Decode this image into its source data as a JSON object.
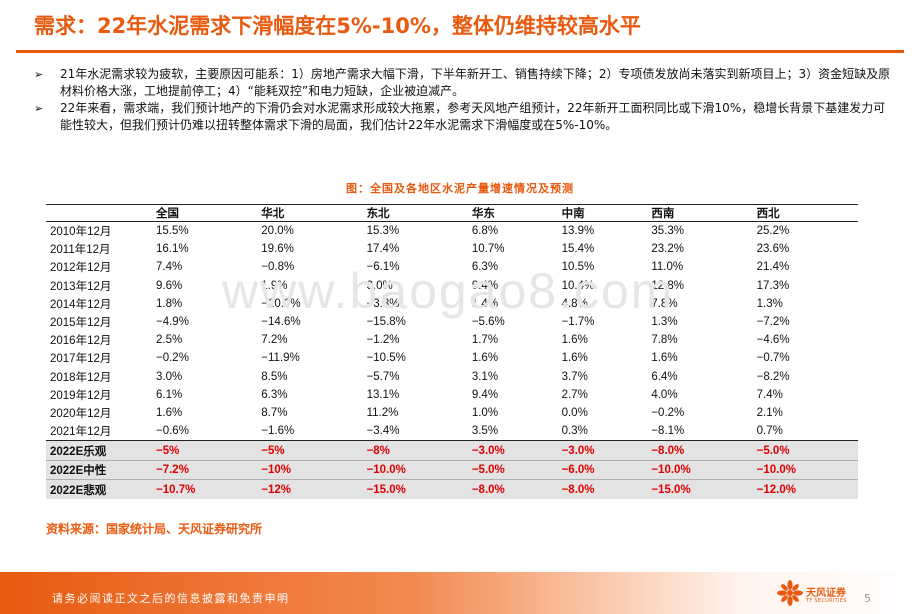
{
  "title": "需求：22年水泥需求下滑幅度在5%-10%，整体仍维持较高水平",
  "bullets": [
    {
      "mark": "➢",
      "text": "21年水泥需求较为疲软，主要原因可能系：1）房地产需求大幅下滑，下半年新开工、销售持续下降；2）专项债发放尚未落实到新项目上；3）资金短缺及原材料价格大涨，工地提前停工；4）“能耗双控”和电力短缺，企业被迫减产。"
    },
    {
      "mark": "➢",
      "text": "22年来看，需求端，我们预计地产的下滑仍会对水泥需求形成较大拖累，参考天风地产组预计，22年新开工面积同比或下滑10%，稳增长背景下基建发力可能性较大，但我们预计仍难以扭转整体需求下滑的局面，我们估计22年水泥需求下滑幅度或在5%-10%。"
    }
  ],
  "watermark": "www.baogao8.com",
  "caption": "图：全国及各地区水泥产量增速情况及预测",
  "table": {
    "headers": [
      "",
      "全国",
      "华北",
      "东北",
      "华东",
      "中南",
      "西南",
      "西北"
    ],
    "rows": [
      [
        "2010年12月",
        "15.5%",
        "20.0%",
        "15.3%",
        "6.8%",
        "13.9%",
        "35.3%",
        "25.2%"
      ],
      [
        "2011年12月",
        "16.1%",
        "19.6%",
        "17.4%",
        "10.7%",
        "15.4%",
        "23.2%",
        "23.6%"
      ],
      [
        "2012年12月",
        "7.4%",
        "−0.8%",
        "−6.1%",
        "6.3%",
        "10.5%",
        "11.0%",
        "21.4%"
      ],
      [
        "2013年12月",
        "9.6%",
        "1.9%",
        "3.0%",
        "9.4%",
        "10.4%",
        "12.8%",
        "17.3%"
      ],
      [
        "2014年12月",
        "1.8%",
        "−10.0%",
        "−3.8%",
        "1.4%",
        "4.8%",
        "7.8%",
        "1.3%"
      ],
      [
        "2015年12月",
        "−4.9%",
        "−14.6%",
        "−15.8%",
        "−5.6%",
        "−1.7%",
        "1.3%",
        "−7.2%"
      ],
      [
        "2016年12月",
        "2.5%",
        "7.2%",
        "−1.2%",
        "1.7%",
        "1.6%",
        "7.8%",
        "−4.6%"
      ],
      [
        "2017年12月",
        "−0.2%",
        "−11.9%",
        "−10.5%",
        "1.6%",
        "1.6%",
        "1.6%",
        "−0.7%"
      ],
      [
        "2018年12月",
        "3.0%",
        "8.5%",
        "−5.7%",
        "3.1%",
        "3.7%",
        "6.4%",
        "−8.2%"
      ],
      [
        "2019年12月",
        "6.1%",
        "6.3%",
        "13.1%",
        "9.4%",
        "2.7%",
        "4.0%",
        "7.4%"
      ],
      [
        "2020年12月",
        "1.6%",
        "8.7%",
        "11.2%",
        "1.0%",
        "0.0%",
        "−0.2%",
        "2.1%"
      ],
      [
        "2021年12月",
        "−0.6%",
        "−1.6%",
        "−3.4%",
        "3.5%",
        "0.3%",
        "−8.1%",
        "0.7%"
      ]
    ],
    "forecast_rows": [
      [
        "2022E乐观",
        "−5%",
        "−5%",
        "−8%",
        "−3.0%",
        "−3.0%",
        "−8.0%",
        "−5.0%"
      ],
      [
        "2022E中性",
        "−7.2%",
        "−10%",
        "−10.0%",
        "−5.0%",
        "−6.0%",
        "−10.0%",
        "−10.0%"
      ],
      [
        "2022E悲观",
        "−10.7%",
        "−12%",
        "−15.0%",
        "−8.0%",
        "−8.0%",
        "−15.0%",
        "−12.0%"
      ]
    ]
  },
  "source": "资料来源：国家统计局、天风证券研究所",
  "footer": {
    "disclaimer": "请务必阅读正文之后的信息披露和免责申明",
    "logo_text": "天风证券",
    "logo_sub": "TF SECURITIES",
    "page_number": "5"
  },
  "colors": {
    "accent": "#e85a10",
    "forecast_value": "#e00000",
    "forecast_bg": "#e3e3e3"
  }
}
